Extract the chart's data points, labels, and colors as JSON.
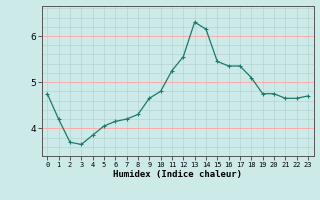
{
  "x": [
    0,
    1,
    2,
    3,
    4,
    5,
    6,
    7,
    8,
    9,
    10,
    11,
    12,
    13,
    14,
    15,
    16,
    17,
    18,
    19,
    20,
    21,
    22,
    23
  ],
  "y": [
    4.75,
    4.2,
    3.7,
    3.65,
    3.85,
    4.05,
    4.15,
    4.2,
    4.3,
    4.65,
    4.8,
    5.25,
    5.55,
    6.3,
    6.15,
    5.45,
    5.35,
    5.35,
    5.1,
    4.75,
    4.75,
    4.65,
    4.65,
    4.7
  ],
  "xlabel": "Humidex (Indice chaleur)",
  "line_color": "#1a7a6e",
  "bg_color": "#cceae8",
  "grid_color_minor": "#b0d8d5",
  "grid_color_major": "#ffcccc",
  "ylim": [
    3.4,
    6.65
  ],
  "yticks": [
    4,
    5,
    6
  ],
  "xtick_labels": [
    "0",
    "1",
    "2",
    "3",
    "4",
    "5",
    "6",
    "7",
    "8",
    "9",
    "10",
    "11",
    "12",
    "13",
    "14",
    "15",
    "16",
    "17",
    "18",
    "19",
    "20",
    "21",
    "22",
    "23"
  ]
}
